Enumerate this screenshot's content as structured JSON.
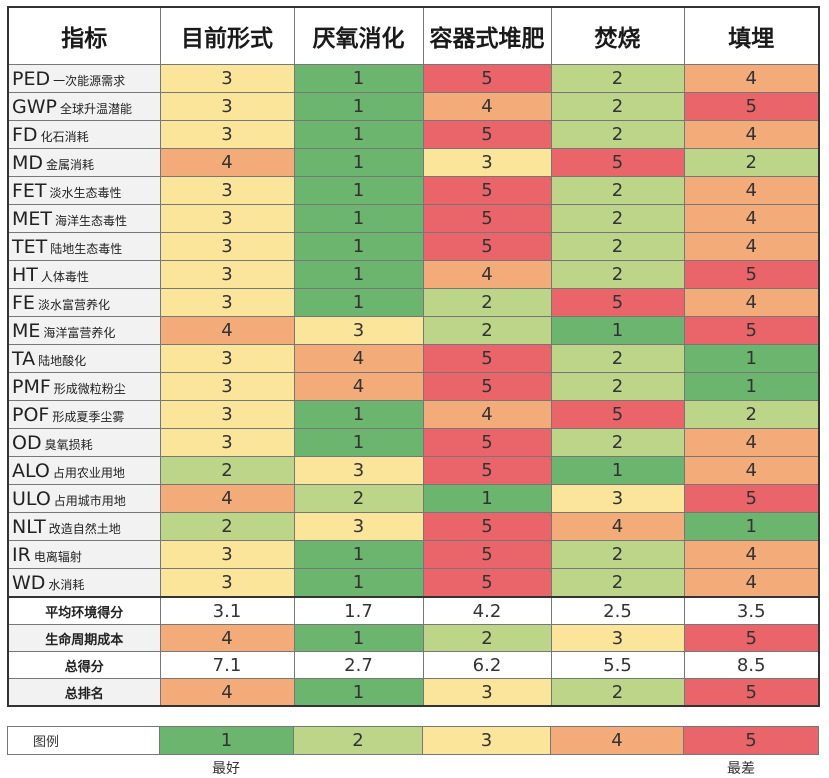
{
  "colors": {
    "1": "#6cb56f",
    "2": "#bcd588",
    "3": "#fbe59a",
    "4": "#f3ab7a",
    "5": "#e9656a"
  },
  "chart_data": {
    "type": "table",
    "headers": [
      "指标",
      "目前形式",
      "厌氧消化",
      "容器式堆肥",
      "焚烧",
      "填埋"
    ],
    "indicators": [
      {
        "abbr": "PED",
        "name": "一次能源需求",
        "scores": [
          3,
          1,
          5,
          2,
          4
        ]
      },
      {
        "abbr": "GWP",
        "name": "全球升温潜能",
        "scores": [
          3,
          1,
          4,
          2,
          5
        ]
      },
      {
        "abbr": "FD",
        "name": "化石消耗",
        "scores": [
          3,
          1,
          5,
          2,
          4
        ]
      },
      {
        "abbr": "MD",
        "name": "金属消耗",
        "scores": [
          4,
          1,
          3,
          5,
          2
        ]
      },
      {
        "abbr": "FET",
        "name": "淡水生态毒性",
        "scores": [
          3,
          1,
          5,
          2,
          4
        ]
      },
      {
        "abbr": "MET",
        "name": "海洋生态毒性",
        "scores": [
          3,
          1,
          5,
          2,
          4
        ]
      },
      {
        "abbr": "TET",
        "name": "陆地生态毒性",
        "scores": [
          3,
          1,
          5,
          2,
          4
        ]
      },
      {
        "abbr": "HT",
        "name": "人体毒性",
        "scores": [
          3,
          1,
          4,
          2,
          5
        ]
      },
      {
        "abbr": "FE",
        "name": "淡水富营养化",
        "scores": [
          3,
          1,
          2,
          5,
          4
        ]
      },
      {
        "abbr": "ME",
        "name": "海洋富营养化",
        "scores": [
          4,
          3,
          2,
          1,
          5
        ]
      },
      {
        "abbr": "TA",
        "name": "陆地酸化",
        "scores": [
          3,
          4,
          5,
          2,
          1
        ]
      },
      {
        "abbr": "PMF",
        "name": "形成微粒粉尘",
        "scores": [
          3,
          4,
          5,
          2,
          1
        ]
      },
      {
        "abbr": "POF",
        "name": "形成夏季尘雾",
        "scores": [
          3,
          1,
          4,
          5,
          2
        ]
      },
      {
        "abbr": "OD",
        "name": "臭氧损耗",
        "scores": [
          3,
          1,
          5,
          2,
          4
        ]
      },
      {
        "abbr": "ALO",
        "name": "占用农业用地",
        "scores": [
          2,
          3,
          5,
          1,
          4
        ]
      },
      {
        "abbr": "ULO",
        "name": "占用城市用地",
        "scores": [
          4,
          2,
          1,
          3,
          5
        ]
      },
      {
        "abbr": "NLT",
        "name": "改造自然土地",
        "scores": [
          2,
          3,
          5,
          4,
          1
        ]
      },
      {
        "abbr": "IR",
        "name": "电离辐射",
        "scores": [
          3,
          1,
          5,
          2,
          4
        ]
      },
      {
        "abbr": "WD",
        "name": "水消耗",
        "scores": [
          3,
          1,
          5,
          2,
          4
        ]
      }
    ],
    "summary": [
      {
        "label": "平均环境得分",
        "values": [
          "3.1",
          "1.7",
          "4.2",
          "2.5",
          "3.5"
        ],
        "colored": false
      },
      {
        "label": "生命周期成本",
        "values": [
          "4",
          "1",
          "2",
          "3",
          "5"
        ],
        "colored": true
      },
      {
        "label": "总得分",
        "values": [
          "7.1",
          "2.7",
          "6.2",
          "5.5",
          "8.5"
        ],
        "colored": false
      },
      {
        "label": "总排名",
        "values": [
          "4",
          "1",
          "3",
          "2",
          "5"
        ],
        "colored": true
      }
    ]
  },
  "legend": {
    "title": "图例",
    "values": [
      "1",
      "2",
      "3",
      "4",
      "5"
    ],
    "best_label": "最好",
    "worst_label": "最差"
  }
}
